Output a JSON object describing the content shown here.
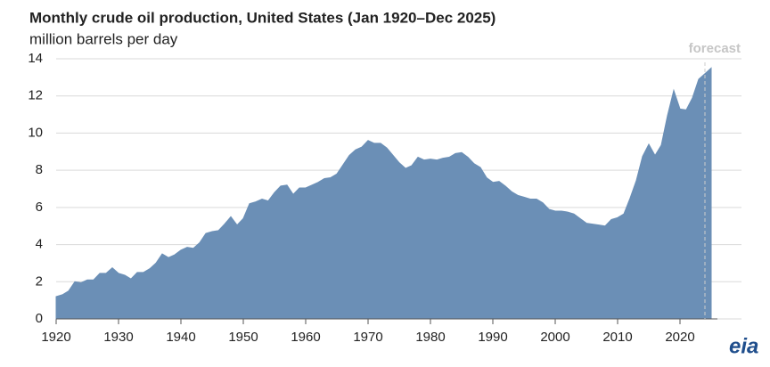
{
  "chart_data": {
    "type": "area",
    "title": "Monthly crude oil production, United States (Jan 1920–Dec 2025)",
    "subtitle": "million barrels per day",
    "x": [
      1920,
      1921,
      1922,
      1923,
      1924,
      1925,
      1926,
      1927,
      1928,
      1929,
      1930,
      1931,
      1932,
      1933,
      1934,
      1935,
      1936,
      1937,
      1938,
      1939,
      1940,
      1941,
      1942,
      1943,
      1944,
      1945,
      1946,
      1947,
      1948,
      1949,
      1950,
      1951,
      1952,
      1953,
      1954,
      1955,
      1956,
      1957,
      1958,
      1959,
      1960,
      1961,
      1962,
      1963,
      1964,
      1965,
      1966,
      1967,
      1968,
      1969,
      1970,
      1971,
      1972,
      1973,
      1974,
      1975,
      1976,
      1977,
      1978,
      1979,
      1980,
      1981,
      1982,
      1983,
      1984,
      1985,
      1986,
      1987,
      1988,
      1989,
      1990,
      1991,
      1992,
      1993,
      1994,
      1995,
      1996,
      1997,
      1998,
      1999,
      2000,
      2001,
      2002,
      2003,
      2004,
      2005,
      2006,
      2007,
      2008,
      2009,
      2010,
      2011,
      2012,
      2013,
      2014,
      2015,
      2016,
      2017,
      2018,
      2019,
      2020,
      2021,
      2022,
      2023,
      2024,
      2025
    ],
    "series": [
      {
        "name": "U.S. crude oil production",
        "color": "#6b8fb6",
        "values": [
          1.2,
          1.3,
          1.5,
          2.0,
          1.95,
          2.1,
          2.1,
          2.45,
          2.45,
          2.75,
          2.45,
          2.35,
          2.15,
          2.5,
          2.5,
          2.7,
          3.0,
          3.5,
          3.3,
          3.45,
          3.7,
          3.85,
          3.8,
          4.1,
          4.6,
          4.7,
          4.75,
          5.1,
          5.5,
          5.05,
          5.4,
          6.2,
          6.3,
          6.45,
          6.35,
          6.8,
          7.15,
          7.2,
          6.7,
          7.05,
          7.05,
          7.2,
          7.35,
          7.55,
          7.6,
          7.8,
          8.3,
          8.8,
          9.1,
          9.25,
          9.6,
          9.45,
          9.45,
          9.2,
          8.8,
          8.4,
          8.1,
          8.25,
          8.7,
          8.55,
          8.6,
          8.55,
          8.65,
          8.7,
          8.9,
          8.95,
          8.7,
          8.35,
          8.15,
          7.6,
          7.35,
          7.4,
          7.15,
          6.85,
          6.65,
          6.55,
          6.45,
          6.45,
          6.25,
          5.9,
          5.8,
          5.8,
          5.75,
          5.65,
          5.4,
          5.15,
          5.1,
          5.05,
          5.0,
          5.35,
          5.45,
          5.65,
          6.5,
          7.45,
          8.75,
          9.4,
          8.8,
          9.35,
          10.95,
          12.3,
          11.3,
          11.25,
          11.9,
          12.9,
          13.2,
          13.5
        ]
      }
    ],
    "xlim": [
      1920,
      2026
    ],
    "xticks": [
      1920,
      1930,
      1940,
      1950,
      1960,
      1970,
      1980,
      1990,
      2000,
      2010,
      2020
    ],
    "ylim": [
      0,
      14
    ],
    "yticks": [
      0,
      2,
      4,
      6,
      8,
      10,
      12,
      14
    ],
    "grid": true,
    "forecast": {
      "label": "forecast",
      "x": 2024
    },
    "logo": "eia"
  }
}
